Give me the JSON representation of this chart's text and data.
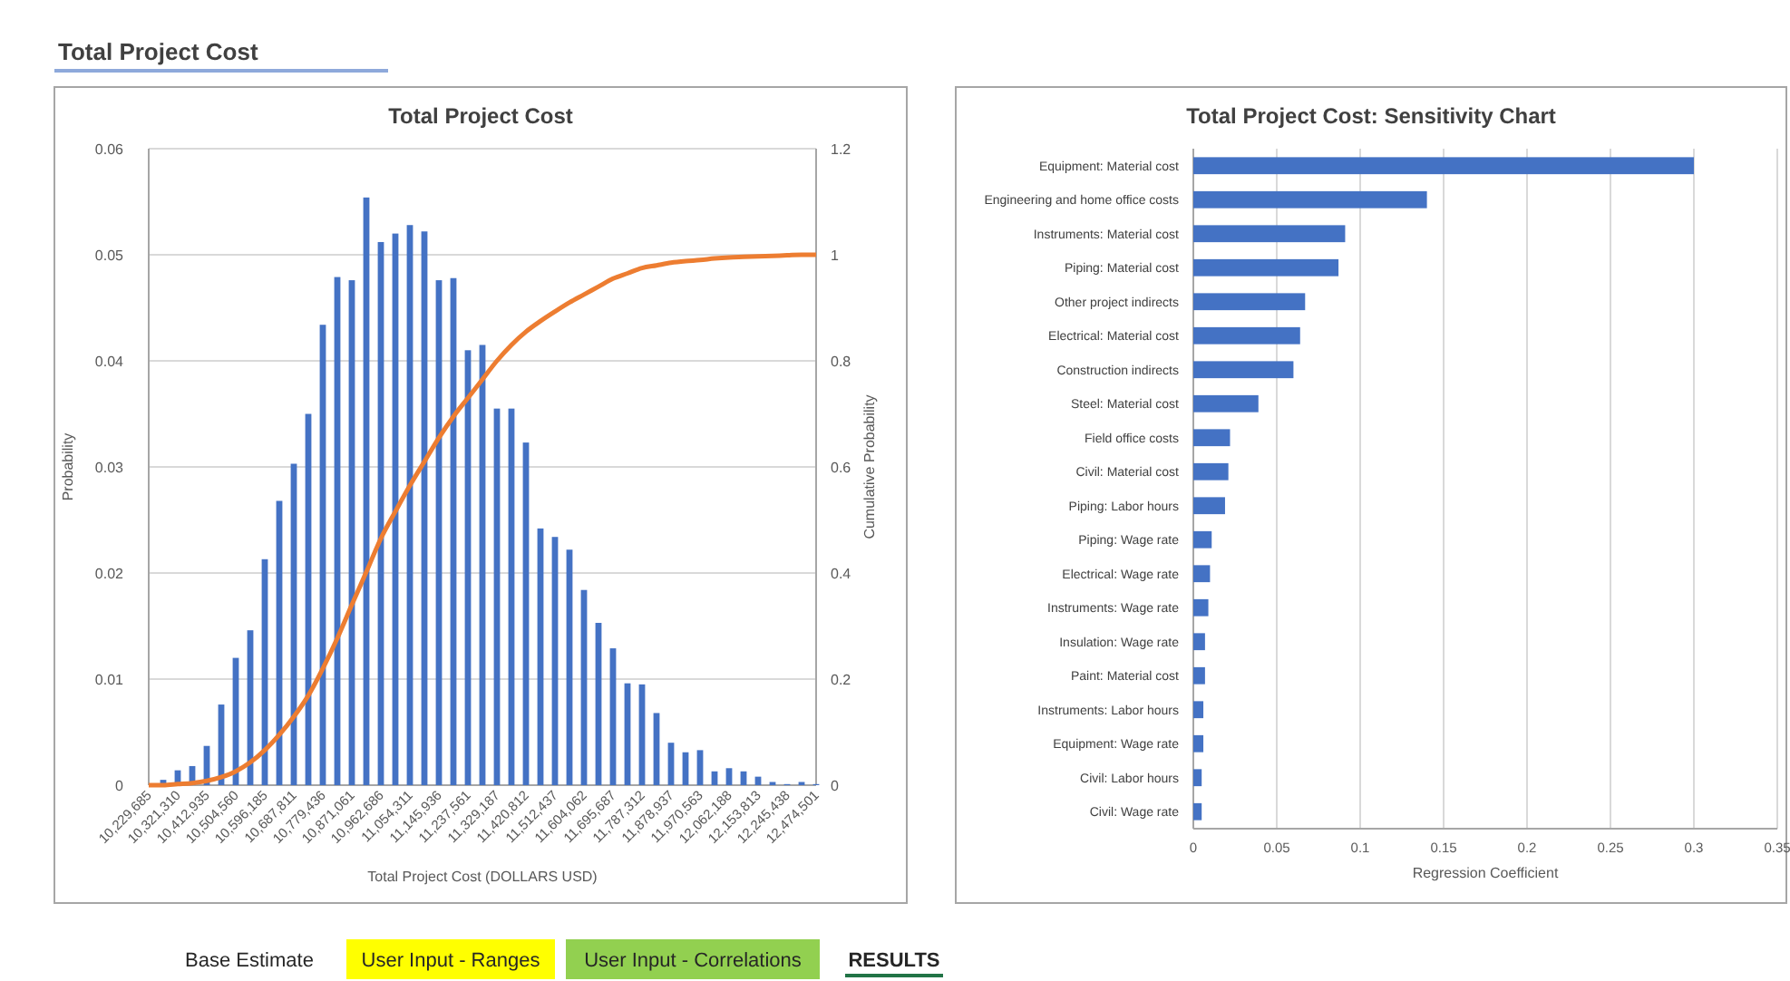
{
  "chart_data": [
    {
      "type": "bar",
      "title": "Total Project Cost",
      "xlabel": "Total Project Cost (DOLLARS  USD)",
      "ylabel": "Probability",
      "y2label": "Cumulative Probability",
      "categories": [
        "10,229,685",
        null,
        "10,321,310",
        null,
        "10,412,935",
        null,
        "10,504,560",
        null,
        "10,596,185",
        null,
        "10,687,811",
        null,
        "10,779,436",
        null,
        "10,871,061",
        null,
        "10,962,686",
        null,
        "11,054,311",
        null,
        "11,145,936",
        null,
        "11,237,561",
        null,
        "11,329,187",
        null,
        "11,420,812",
        null,
        "11,512,437",
        null,
        "11,604,062",
        null,
        "11,695,687",
        null,
        "11,787,312",
        null,
        "11,878,937",
        null,
        "11,970,563",
        null,
        "12,062,188",
        null,
        "12,153,813",
        null,
        "12,245,438",
        null,
        "12,474,501"
      ],
      "series": [
        {
          "type": "bar",
          "color": "#4472c4",
          "values": [
            0,
            0.0005,
            0.0014,
            0.0018,
            0.0037,
            0.0076,
            0.012,
            0.0146,
            0.0213,
            0.0268,
            0.0303,
            0.035,
            0.0434,
            0.0479,
            0.0476,
            0.0554,
            0.0512,
            0.052,
            0.0528,
            0.0522,
            0.0476,
            0.0478,
            0.041,
            0.0415,
            0.0355,
            0.0355,
            0.0323,
            0.0242,
            0.0234,
            0.0222,
            0.0184,
            0.0153,
            0.0129,
            0.0096,
            0.0095,
            0.0068,
            0.004,
            0.0031,
            0.0033,
            0.0013,
            0.0016,
            0.0013,
            0.0008,
            0.0003,
            0.0001,
            0.0003,
            0.0001
          ]
        },
        {
          "type": "line",
          "color": "#ed7d31",
          "axis": "y2",
          "values": [
            0,
            0,
            0.002,
            0.004,
            0.008,
            0.015,
            0.026,
            0.043,
            0.066,
            0.095,
            0.129,
            0.169,
            0.22,
            0.277,
            0.34,
            0.402,
            0.465,
            0.516,
            0.565,
            0.61,
            0.655,
            0.695,
            0.73,
            0.765,
            0.8,
            0.83,
            0.855,
            0.875,
            0.893,
            0.91,
            0.925,
            0.94,
            0.955,
            0.965,
            0.975,
            0.98,
            0.985,
            0.988,
            0.99,
            0.993,
            0.995,
            0.996,
            0.997,
            0.998,
            0.999,
            1,
            1
          ]
        }
      ],
      "ylim": [
        0,
        0.06
      ],
      "yticks": [
        0,
        0.01,
        0.02,
        0.03,
        0.04,
        0.05,
        0.06
      ],
      "y2lim": [
        0,
        1.2
      ],
      "y2ticks": [
        0,
        0.2,
        0.4,
        0.6,
        0.8,
        1,
        1.2
      ],
      "grid": "y"
    },
    {
      "type": "bar",
      "orientation": "horizontal",
      "title": "Total Project Cost: Sensitivity Chart",
      "xlabel": "Regression Coefficient",
      "categories": [
        "Equipment: Material cost",
        "Engineering and home office costs",
        "Instruments: Material cost",
        "Piping: Material cost",
        "Other project indirects",
        "Electrical: Material cost",
        "Construction indirects",
        "Steel: Material cost",
        "Field office costs",
        "Civil: Material cost",
        "Piping: Labor hours",
        "Piping: Wage rate",
        "Electrical: Wage rate",
        "Instruments: Wage rate",
        "Insulation: Wage rate",
        "Paint: Material cost",
        "Instruments: Labor hours",
        "Equipment: Wage rate",
        "Civil: Labor hours",
        "Civil: Wage rate"
      ],
      "values": [
        0.3,
        0.14,
        0.091,
        0.087,
        0.067,
        0.064,
        0.06,
        0.039,
        0.022,
        0.021,
        0.019,
        0.011,
        0.01,
        0.009,
        0.007,
        0.007,
        0.006,
        0.006,
        0.005,
        0.005
      ],
      "color": "#4472c4",
      "xlim": [
        0,
        0.35
      ],
      "xticks": [
        0,
        0.05,
        0.1,
        0.15,
        0.2,
        0.25,
        0.3,
        0.35
      ],
      "grid": "x"
    },
    {
      "type": "other",
      "title": "Total Project Cost",
      "annotations": [
        "Base Estimate",
        "User Input - Ranges",
        "User Input - Correlations",
        "RESULTS"
      ]
    }
  ]
}
